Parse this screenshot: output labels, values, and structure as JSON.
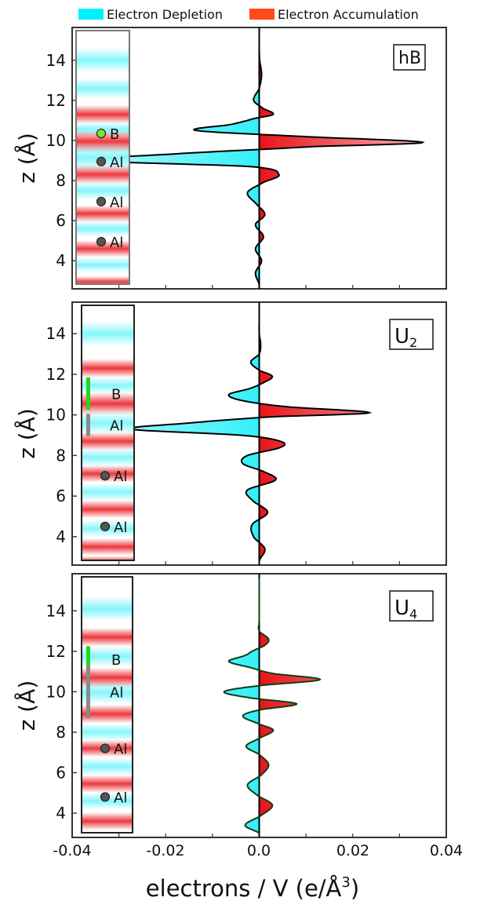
{
  "legend": {
    "depletion_label": "Electron Depletion",
    "accumulation_label": "Electron Accumulation",
    "depletion_color": "#00f0ff",
    "accumulation_color": "#ff4a1a"
  },
  "colors": {
    "depletion_fill": "#33f0f8",
    "accumulation_fill": "#e8141a",
    "curve_hB": "#000000",
    "curve_U2": "#000000",
    "curve_U4": "#123d12",
    "atom_B_hB": "#7de629",
    "atom_Al": "#555555",
    "bar_B": "#22d622",
    "bar_Al": "#8a8a8a"
  },
  "chart_data": [
    {
      "panel": "hB",
      "type": "line",
      "label": "hB",
      "ylabel": "z (Å)",
      "xlim": [
        -0.04,
        0.04
      ],
      "ylim": [
        2.6,
        15.4
      ],
      "yticks": [
        4,
        6,
        8,
        10,
        12,
        14
      ],
      "curve": {
        "z": [
          2.8,
          3.4,
          4.0,
          4.6,
          5.2,
          5.8,
          6.3,
          6.8,
          7.4,
          7.9,
          8.3,
          8.7,
          9.0,
          9.3,
          9.7,
          9.9,
          10.2,
          10.5,
          10.8,
          11.1,
          11.3,
          11.6,
          12.0,
          12.6,
          13.3,
          14.0,
          14.6,
          15.0,
          15.4
        ],
        "dn": [
          0.0,
          -0.0008,
          0.0005,
          -0.0008,
          0.0009,
          -0.0008,
          0.0012,
          -0.0005,
          -0.0025,
          0.0008,
          0.0042,
          -0.002,
          -0.0365,
          -0.02,
          0.012,
          0.035,
          0.009,
          -0.0135,
          -0.006,
          -0.001,
          0.003,
          0.0008,
          -0.0012,
          0.0,
          0.0005,
          0.0001,
          0.0,
          0.0,
          0.0
        ]
      },
      "atoms": [
        {
          "label": "B",
          "z": 10.35,
          "marker": "dot",
          "color_key": "atom_B_hB"
        },
        {
          "label": "Al",
          "z": 8.95,
          "marker": "dot",
          "color_key": "atom_Al"
        },
        {
          "label": "Al",
          "z": 6.95,
          "marker": "dot",
          "color_key": "atom_Al"
        },
        {
          "label": "Al",
          "z": 4.95,
          "marker": "dot",
          "color_key": "atom_Al"
        }
      ],
      "strip_bands": [
        {
          "z": 11.3,
          "sign": 1,
          "w": 0.42
        },
        {
          "z": 10.55,
          "sign": -1,
          "w": 0.32
        },
        {
          "z": 9.95,
          "sign": 1,
          "w": 0.5
        },
        {
          "z": 9.15,
          "sign": -1,
          "w": 0.62
        },
        {
          "z": 8.3,
          "sign": 1,
          "w": 0.42
        },
        {
          "z": 7.5,
          "sign": -1,
          "w": 0.42
        },
        {
          "z": 6.35,
          "sign": 1,
          "w": 0.38
        },
        {
          "z": 5.6,
          "sign": -1,
          "w": 0.36
        },
        {
          "z": 4.6,
          "sign": 1,
          "w": 0.38
        },
        {
          "z": 3.8,
          "sign": -1,
          "w": 0.34
        },
        {
          "z": 2.95,
          "sign": 1,
          "w": 0.25
        },
        {
          "z": 14.0,
          "sign": -1,
          "w": 0.55
        },
        {
          "z": 12.6,
          "sign": -1,
          "w": 0.45
        }
      ]
    },
    {
      "panel": "U2",
      "type": "line",
      "label": "U",
      "label_sub": "2",
      "ylabel": "z (Å)",
      "xlim": [
        -0.04,
        0.04
      ],
      "ylim": [
        2.6,
        15.4
      ],
      "yticks": [
        4,
        6,
        8,
        10,
        12,
        14
      ],
      "curve": {
        "z": [
          2.8,
          3.4,
          4.0,
          4.6,
          5.2,
          5.8,
          6.3,
          6.8,
          7.2,
          7.6,
          8.0,
          8.4,
          8.7,
          9.0,
          9.3,
          9.6,
          9.9,
          10.1,
          10.4,
          10.7,
          11.0,
          11.3,
          11.6,
          11.9,
          12.2,
          12.6,
          13.0,
          13.5,
          14.0,
          14.6,
          15.0,
          15.4
        ],
        "dn": [
          0.0,
          0.0012,
          -0.0012,
          -0.0015,
          0.0018,
          -0.0015,
          -0.0025,
          0.0035,
          0.001,
          -0.0035,
          -0.0025,
          0.0045,
          0.0045,
          -0.004,
          -0.0275,
          -0.015,
          0.002,
          0.0235,
          0.006,
          -0.0035,
          -0.0065,
          -0.002,
          0.001,
          0.0028,
          0.0,
          -0.0018,
          0.0,
          0.0003,
          0.0,
          0.0,
          0.0,
          0.0
        ]
      },
      "atoms": [
        {
          "label": "B",
          "z": 11.05,
          "marker": "bar",
          "color_key": "bar_B",
          "extent": 0.8
        },
        {
          "label": "Al",
          "z": 9.5,
          "marker": "bar",
          "color_key": "bar_Al",
          "extent": 0.55
        },
        {
          "label": "Al",
          "z": 7.0,
          "marker": "dot",
          "color_key": "atom_Al"
        },
        {
          "label": "Al",
          "z": 4.5,
          "marker": "dot",
          "color_key": "atom_Al"
        }
      ],
      "strip_bands": [
        {
          "z": 12.3,
          "sign": 1,
          "w": 0.42
        },
        {
          "z": 11.45,
          "sign": -1,
          "w": 0.38
        },
        {
          "z": 10.55,
          "sign": 1,
          "w": 0.5
        },
        {
          "z": 9.6,
          "sign": -1,
          "w": 0.5
        },
        {
          "z": 8.7,
          "sign": 1,
          "w": 0.4
        },
        {
          "z": 7.9,
          "sign": -1,
          "w": 0.4
        },
        {
          "z": 7.1,
          "sign": 1,
          "w": 0.38
        },
        {
          "z": 6.2,
          "sign": -1,
          "w": 0.4
        },
        {
          "z": 5.35,
          "sign": 1,
          "w": 0.4
        },
        {
          "z": 4.4,
          "sign": -1,
          "w": 0.38
        },
        {
          "z": 3.5,
          "sign": 1,
          "w": 0.38
        },
        {
          "z": 2.8,
          "sign": 1,
          "w": 0.22
        },
        {
          "z": 14.0,
          "sign": -1,
          "w": 0.55
        }
      ]
    },
    {
      "panel": "U4",
      "type": "line",
      "label": "U",
      "label_sub": "4",
      "ylabel": "z (Å)",
      "xlim": [
        -0.04,
        0.04
      ],
      "ylim": [
        2.8,
        15.6
      ],
      "yticks": [
        4,
        6,
        8,
        10,
        12,
        14
      ],
      "curve": {
        "z": [
          3.0,
          3.4,
          3.9,
          4.4,
          4.9,
          5.4,
          5.9,
          6.4,
          6.9,
          7.3,
          7.7,
          8.1,
          8.4,
          8.8,
          9.1,
          9.4,
          9.7,
          10.0,
          10.3,
          10.6,
          10.9,
          11.2,
          11.5,
          11.8,
          12.0,
          12.3,
          12.6,
          13.0,
          13.5,
          14.0,
          14.6,
          15.2,
          15.6
        ],
        "dn": [
          0.0,
          -0.003,
          0.0005,
          0.0028,
          -0.0005,
          -0.0025,
          0.0005,
          0.002,
          0.0,
          -0.0028,
          0.0,
          0.003,
          0.0,
          -0.0035,
          0.0,
          0.008,
          -0.002,
          -0.0075,
          0.0,
          0.013,
          0.003,
          -0.002,
          -0.0065,
          -0.003,
          -0.0015,
          0.0012,
          0.002,
          0.0,
          0.0,
          0.0,
          0.0,
          0.0,
          0.0
        ]
      },
      "atoms": [
        {
          "label": "B",
          "z": 11.6,
          "marker": "bar",
          "color_key": "bar_B",
          "extent": 0.65
        },
        {
          "label": "Al",
          "z": 10.0,
          "marker": "bar",
          "color_key": "bar_Al",
          "extent": 1.3
        },
        {
          "label": "Al",
          "z": 7.2,
          "marker": "dot",
          "color_key": "atom_Al"
        },
        {
          "label": "Al",
          "z": 4.8,
          "marker": "dot",
          "color_key": "atom_Al"
        }
      ],
      "strip_bands": [
        {
          "z": 12.7,
          "sign": 1,
          "w": 0.42
        },
        {
          "z": 11.75,
          "sign": -1,
          "w": 0.45
        },
        {
          "z": 10.7,
          "sign": 1,
          "w": 0.45
        },
        {
          "z": 9.95,
          "sign": -1,
          "w": 0.5
        },
        {
          "z": 8.9,
          "sign": 1,
          "w": 0.42
        },
        {
          "z": 8.0,
          "sign": -1,
          "w": 0.4
        },
        {
          "z": 7.2,
          "sign": 1,
          "w": 0.38
        },
        {
          "z": 6.3,
          "sign": -1,
          "w": 0.4
        },
        {
          "z": 5.45,
          "sign": 1,
          "w": 0.4
        },
        {
          "z": 4.6,
          "sign": -1,
          "w": 0.38
        },
        {
          "z": 3.6,
          "sign": 1,
          "w": 0.4
        },
        {
          "z": 14.1,
          "sign": -1,
          "w": 0.55
        }
      ]
    }
  ],
  "xaxis": {
    "ticks": [
      -0.04,
      -0.02,
      0.0,
      0.02,
      0.04
    ],
    "tick_labels": [
      "-0.04",
      "-0.02",
      "0.0",
      "0.02",
      "0.04"
    ],
    "label": "electrons / V (e/Å",
    "label_sup": "3",
    "label_close": ")"
  }
}
